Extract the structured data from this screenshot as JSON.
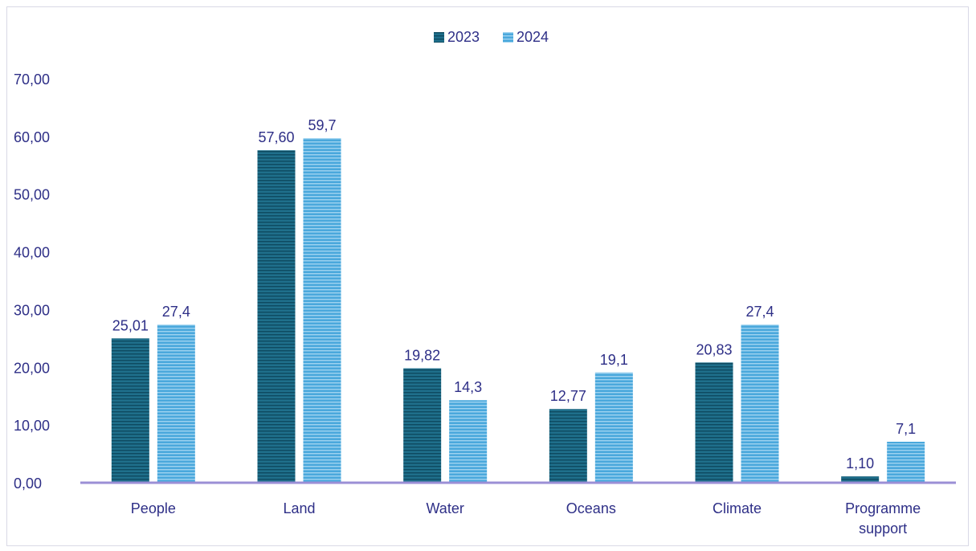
{
  "chart_data": {
    "type": "bar",
    "categories": [
      "People",
      "Land",
      "Water",
      "Oceans",
      "Climate",
      "Programme support"
    ],
    "category_lines": [
      [
        "People"
      ],
      [
        "Land"
      ],
      [
        "Water"
      ],
      [
        "Oceans"
      ],
      [
        "Climate"
      ],
      [
        "Programme",
        "support"
      ]
    ],
    "series": [
      {
        "name": "2023",
        "values": [
          25.01,
          57.6,
          19.82,
          12.77,
          20.83,
          1.1
        ],
        "labels": [
          "25,01",
          "57,60",
          "19,82",
          "12,77",
          "20,83",
          "1,10"
        ],
        "color": "#1f6f8b",
        "stripe": "#0e4a60"
      },
      {
        "name": "2024",
        "values": [
          27.4,
          59.7,
          14.3,
          19.1,
          27.4,
          7.1
        ],
        "labels": [
          "27,4",
          "59,7",
          "14,3",
          "19,1",
          "27,4",
          "7,1"
        ],
        "color": "#4aa8dc",
        "stripe": "#9fd3f0"
      }
    ],
    "ylim": [
      0,
      70
    ],
    "yticks": [
      "0,00",
      "10,00",
      "20,00",
      "30,00",
      "40,00",
      "50,00",
      "60,00",
      "70,00"
    ],
    "legend_position": "top-center",
    "grid": false,
    "axis_color": "#9b8fd6",
    "text_color": "#2e2f87"
  }
}
